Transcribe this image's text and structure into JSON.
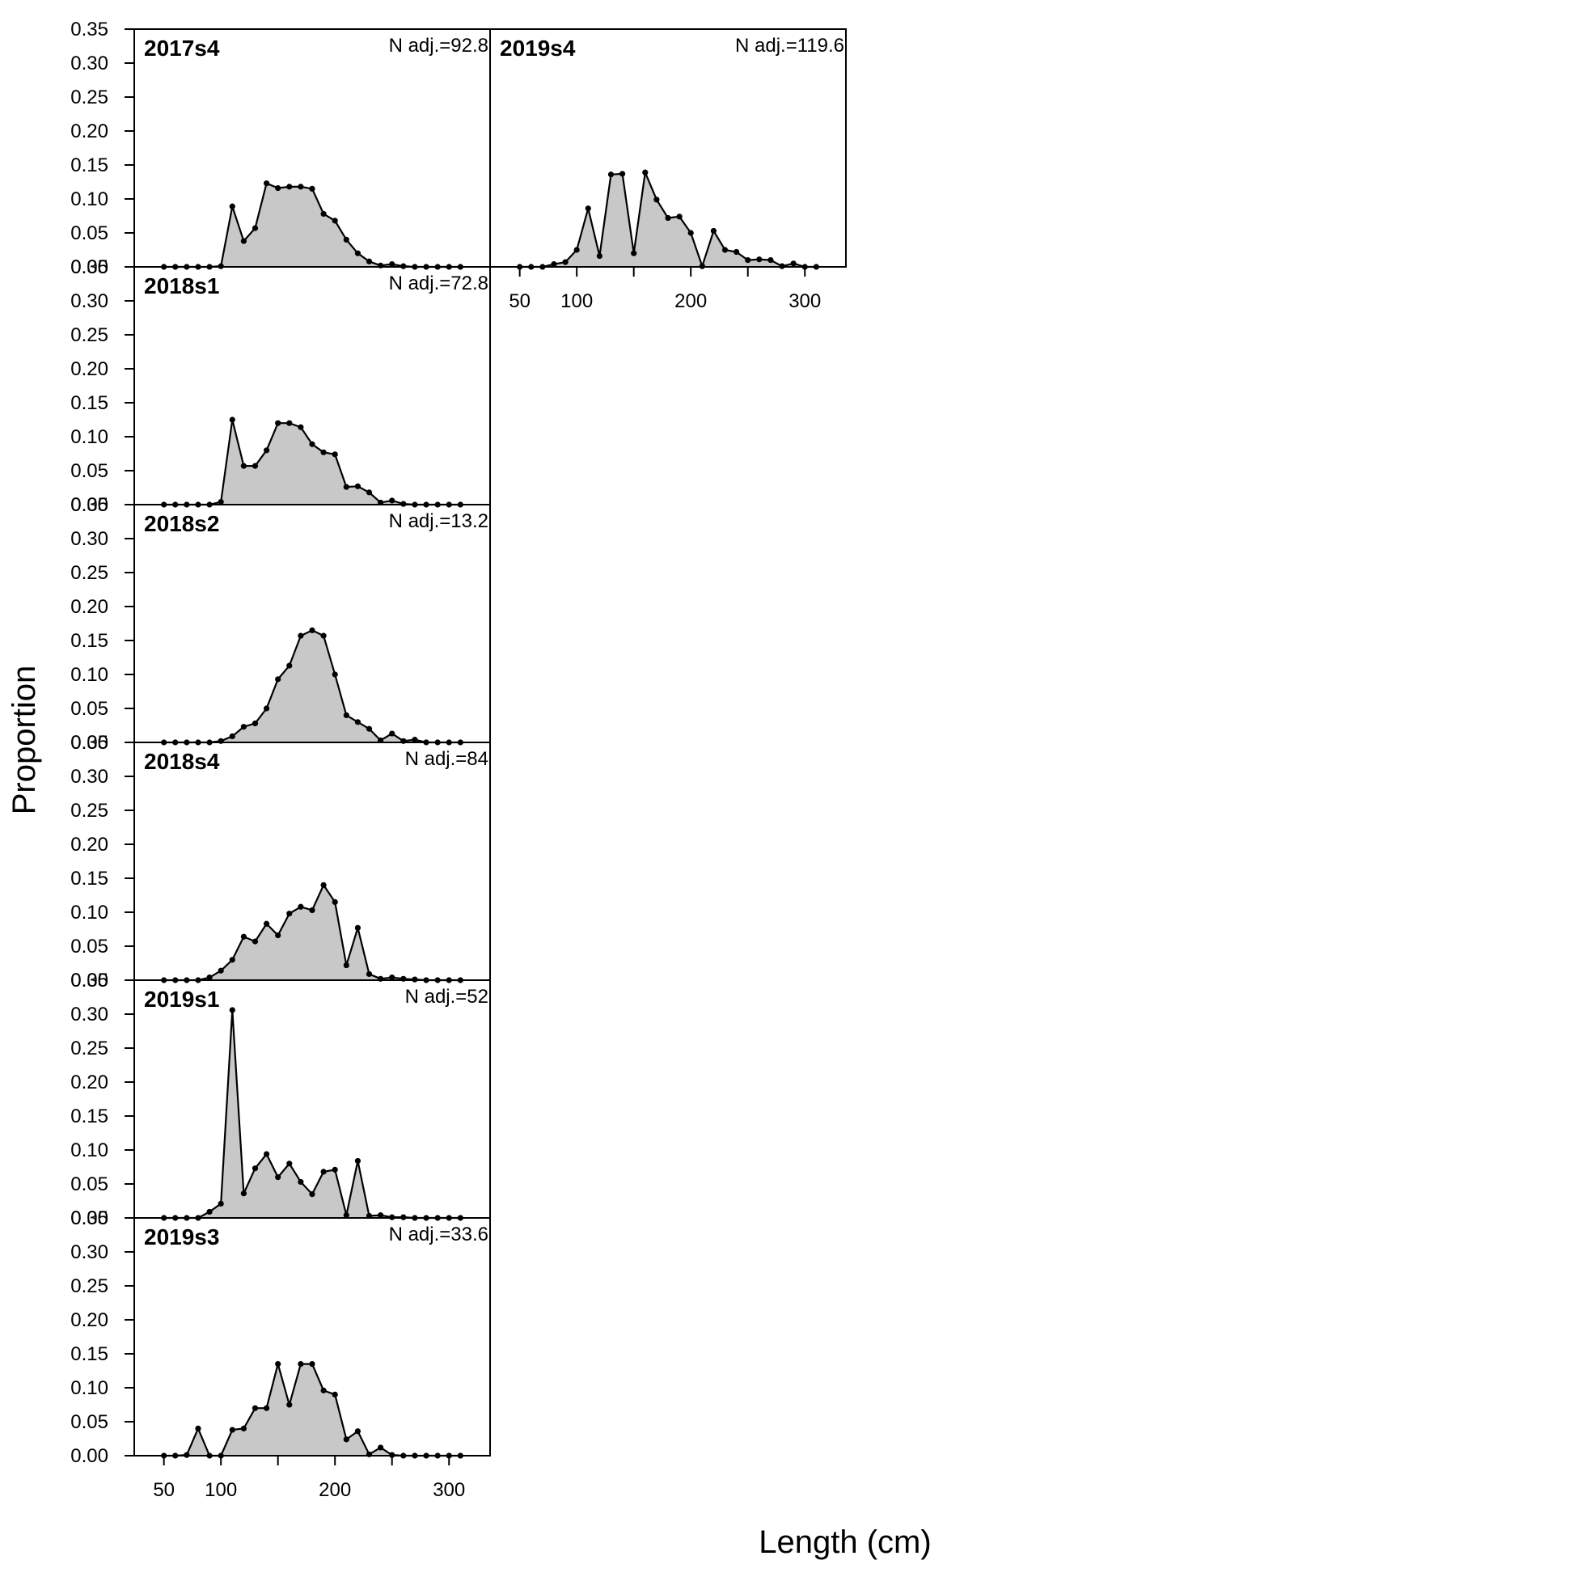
{
  "chart_data": {
    "type": "area",
    "xlabel": "Length (cm)",
    "ylabel": "Proportion",
    "xlim": [
      24,
      336
    ],
    "ylim": [
      0,
      0.35
    ],
    "xticks": [
      50,
      100,
      200,
      300
    ],
    "yticks": [
      "0.00",
      "0.05",
      "0.10",
      "0.15",
      "0.20",
      "0.25",
      "0.30",
      "0.35"
    ],
    "x": [
      50,
      60,
      70,
      80,
      90,
      100,
      110,
      120,
      130,
      140,
      150,
      160,
      170,
      180,
      190,
      200,
      210,
      220,
      230,
      240,
      250,
      260,
      270,
      280,
      290,
      300,
      310
    ],
    "fill_color": "#c8c8c8",
    "line_color": "#000000",
    "panels": [
      {
        "label": "2017s4",
        "n_label": "N adj.=92.8",
        "values": [
          0,
          0,
          0,
          0,
          0,
          0.001,
          0.089,
          0.038,
          0.057,
          0.123,
          0.116,
          0.118,
          0.118,
          0.115,
          0.078,
          0.068,
          0.04,
          0.02,
          0.008,
          0.002,
          0.004,
          0.001,
          0,
          0,
          0,
          0,
          0
        ]
      },
      {
        "label": "2018s1",
        "n_label": "N adj.=72.8",
        "values": [
          0,
          0,
          0,
          0,
          0,
          0.004,
          0.125,
          0.057,
          0.057,
          0.08,
          0.12,
          0.12,
          0.114,
          0.089,
          0.077,
          0.074,
          0.026,
          0.027,
          0.018,
          0.003,
          0.006,
          0.001,
          0,
          0,
          0,
          0,
          0
        ]
      },
      {
        "label": "2018s2",
        "n_label": "N adj.=13.2",
        "values": [
          0,
          0,
          0,
          0,
          0,
          0.002,
          0.009,
          0.023,
          0.028,
          0.05,
          0.093,
          0.113,
          0.157,
          0.165,
          0.157,
          0.1,
          0.04,
          0.03,
          0.02,
          0.003,
          0.013,
          0.002,
          0.004,
          0,
          0,
          0,
          0
        ]
      },
      {
        "label": "2018s4",
        "n_label": "N adj.=84",
        "values": [
          0,
          0,
          0,
          0,
          0.004,
          0.014,
          0.03,
          0.064,
          0.057,
          0.083,
          0.066,
          0.098,
          0.108,
          0.103,
          0.14,
          0.115,
          0.022,
          0.077,
          0.009,
          0.002,
          0.004,
          0.002,
          0.001,
          0,
          0,
          0,
          0
        ]
      },
      {
        "label": "2019s1",
        "n_label": "N adj.=52",
        "values": [
          0,
          0,
          0,
          0,
          0.009,
          0.021,
          0.306,
          0.036,
          0.073,
          0.094,
          0.06,
          0.08,
          0.053,
          0.035,
          0.068,
          0.071,
          0.004,
          0.084,
          0.003,
          0.004,
          0.001,
          0.001,
          0,
          0,
          0,
          0,
          0
        ]
      },
      {
        "label": "2019s3",
        "n_label": "N adj.=33.6",
        "values": [
          0,
          0,
          0.001,
          0.04,
          0,
          0,
          0.038,
          0.04,
          0.07,
          0.07,
          0.135,
          0.075,
          0.135,
          0.135,
          0.096,
          0.09,
          0.024,
          0.036,
          0.002,
          0.012,
          0.001,
          0,
          0,
          0,
          0,
          0,
          0
        ]
      },
      {
        "label": "2019s4",
        "n_label": "N adj.=119.6",
        "values": [
          0,
          0,
          0,
          0.004,
          0.007,
          0.025,
          0.086,
          0.016,
          0.136,
          0.137,
          0.02,
          0.139,
          0.099,
          0.072,
          0.074,
          0.05,
          0.001,
          0.053,
          0.025,
          0.022,
          0.01,
          0.011,
          0.01,
          0.001,
          0.005,
          0,
          0
        ]
      }
    ]
  }
}
